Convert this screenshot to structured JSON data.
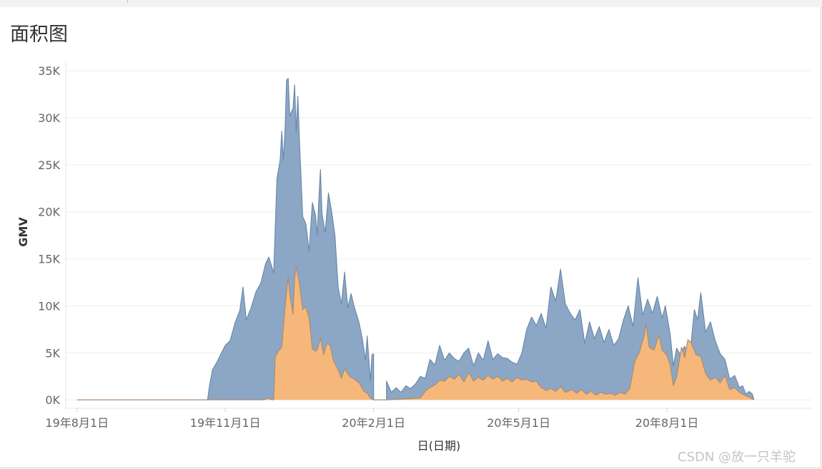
{
  "chart_data": {
    "type": "area",
    "title": "面积图",
    "xlabel": "日(日期)",
    "ylabel": "GMV",
    "x_range": [
      "2019-07-25",
      "2020-10-30"
    ],
    "ylim": [
      -900,
      36000
    ],
    "yticks": [
      0,
      5000,
      10000,
      15000,
      20000,
      25000,
      30000,
      35000
    ],
    "ytick_labels": [
      "0K",
      "5K",
      "10K",
      "15K",
      "20K",
      "25K",
      "30K",
      "35K"
    ],
    "xticks": [
      "2019-08-01",
      "2019-11-01",
      "2020-02-01",
      "2020-05-01",
      "2020-08-01"
    ],
    "xtick_labels": [
      "19年8月1日",
      "19年11月1日",
      "20年2月1日",
      "20年5月1日",
      "20年8月1日"
    ],
    "grid": "horizontal",
    "legend": "none",
    "series": [
      {
        "color": "#8ba7c5",
        "stroke": "#6886a8",
        "points": [
          [
            "2019-08-01",
            0
          ],
          [
            "2019-10-15",
            0
          ],
          [
            "2019-10-21",
            0
          ],
          [
            "2019-10-22",
            1300
          ],
          [
            "2019-10-24",
            3200
          ],
          [
            "2019-10-27",
            4100
          ],
          [
            "2019-11-01",
            5800
          ],
          [
            "2019-11-04",
            6300
          ],
          [
            "2019-11-07",
            8200
          ],
          [
            "2019-11-10",
            9500
          ],
          [
            "2019-11-12",
            12000
          ],
          [
            "2019-11-14",
            8500
          ],
          [
            "2019-11-17",
            9800
          ],
          [
            "2019-11-20",
            11500
          ],
          [
            "2019-11-23",
            12400
          ],
          [
            "2019-11-26",
            14500
          ],
          [
            "2019-11-28",
            15200
          ],
          [
            "2019-12-01",
            13500
          ],
          [
            "2019-12-03",
            23500
          ],
          [
            "2019-12-05",
            25500
          ],
          [
            "2019-12-06",
            28600
          ],
          [
            "2019-12-07",
            25500
          ],
          [
            "2019-12-08",
            28500
          ],
          [
            "2019-12-09",
            34000
          ],
          [
            "2019-12-10",
            34200
          ],
          [
            "2019-12-11",
            30200
          ],
          [
            "2019-12-13",
            31000
          ],
          [
            "2019-12-14",
            33500
          ],
          [
            "2019-12-15",
            28500
          ],
          [
            "2019-12-16",
            32300
          ],
          [
            "2019-12-17",
            27500
          ],
          [
            "2019-12-19",
            19500
          ],
          [
            "2019-12-21",
            18700
          ],
          [
            "2019-12-23",
            15800
          ],
          [
            "2019-12-25",
            21000
          ],
          [
            "2019-12-27",
            19600
          ],
          [
            "2019-12-28",
            17500
          ],
          [
            "2019-12-29",
            21300
          ],
          [
            "2019-12-30",
            24500
          ],
          [
            "2019-12-31",
            19800
          ],
          [
            "2020-01-02",
            17800
          ],
          [
            "2020-01-04",
            22000
          ],
          [
            "2020-01-06",
            20000
          ],
          [
            "2020-01-08",
            17500
          ],
          [
            "2020-01-10",
            12000
          ],
          [
            "2020-01-12",
            10200
          ],
          [
            "2020-01-14",
            13600
          ],
          [
            "2020-01-16",
            9800
          ],
          [
            "2020-01-18",
            11300
          ],
          [
            "2020-01-20",
            9900
          ],
          [
            "2020-01-23",
            8200
          ],
          [
            "2020-01-25",
            6500
          ],
          [
            "2020-01-27",
            4200
          ],
          [
            "2020-01-28",
            6800
          ],
          [
            "2020-01-30",
            2000
          ],
          [
            "2020-01-31",
            4800
          ],
          [
            "2020-02-01",
            4900
          ],
          [
            "2020-02-01",
            0
          ],
          [
            "2020-02-09",
            0
          ],
          [
            "2020-02-09",
            2000
          ],
          [
            "2020-02-12",
            800
          ],
          [
            "2020-02-15",
            1300
          ],
          [
            "2020-02-18",
            800
          ],
          [
            "2020-02-21",
            1500
          ],
          [
            "2020-02-24",
            1200
          ],
          [
            "2020-02-27",
            1700
          ],
          [
            "2020-03-01",
            2500
          ],
          [
            "2020-03-04",
            2300
          ],
          [
            "2020-03-07",
            4300
          ],
          [
            "2020-03-10",
            3700
          ],
          [
            "2020-03-13",
            5800
          ],
          [
            "2020-03-16",
            4200
          ],
          [
            "2020-03-19",
            5000
          ],
          [
            "2020-03-22",
            4400
          ],
          [
            "2020-03-25",
            4100
          ],
          [
            "2020-03-28",
            5000
          ],
          [
            "2020-03-31",
            5500
          ],
          [
            "2020-04-03",
            3600
          ],
          [
            "2020-04-06",
            5000
          ],
          [
            "2020-04-09",
            4200
          ],
          [
            "2020-04-12",
            6300
          ],
          [
            "2020-04-15",
            4300
          ],
          [
            "2020-04-18",
            4900
          ],
          [
            "2020-04-21",
            4500
          ],
          [
            "2020-04-24",
            4400
          ],
          [
            "2020-04-27",
            4000
          ],
          [
            "2020-04-30",
            3800
          ],
          [
            "2020-05-03",
            5000
          ],
          [
            "2020-05-06",
            7500
          ],
          [
            "2020-05-09",
            8800
          ],
          [
            "2020-05-12",
            7900
          ],
          [
            "2020-05-15",
            9200
          ],
          [
            "2020-05-18",
            7600
          ],
          [
            "2020-05-21",
            12000
          ],
          [
            "2020-05-24",
            10500
          ],
          [
            "2020-05-27",
            13900
          ],
          [
            "2020-05-30",
            10200
          ],
          [
            "2020-06-02",
            9200
          ],
          [
            "2020-06-05",
            8500
          ],
          [
            "2020-06-08",
            9600
          ],
          [
            "2020-06-11",
            6000
          ],
          [
            "2020-06-14",
            8300
          ],
          [
            "2020-06-17",
            6500
          ],
          [
            "2020-06-20",
            7800
          ],
          [
            "2020-06-23",
            6100
          ],
          [
            "2020-06-26",
            7500
          ],
          [
            "2020-06-29",
            5800
          ],
          [
            "2020-07-02",
            6500
          ],
          [
            "2020-07-05",
            8500
          ],
          [
            "2020-07-08",
            10000
          ],
          [
            "2020-07-11",
            7800
          ],
          [
            "2020-07-14",
            13000
          ],
          [
            "2020-07-17",
            9000
          ],
          [
            "2020-07-20",
            10700
          ],
          [
            "2020-07-23",
            9200
          ],
          [
            "2020-07-26",
            11000
          ],
          [
            "2020-07-29",
            8700
          ],
          [
            "2020-07-31",
            10000
          ],
          [
            "2020-08-03",
            7000
          ],
          [
            "2020-08-05",
            3600
          ],
          [
            "2020-08-07",
            5500
          ],
          [
            "2020-08-09",
            4900
          ],
          [
            "2020-08-12",
            5700
          ],
          [
            "2020-08-15",
            4300
          ],
          [
            "2020-08-18",
            9600
          ],
          [
            "2020-08-20",
            8500
          ],
          [
            "2020-08-22",
            11400
          ],
          [
            "2020-08-25",
            7200
          ],
          [
            "2020-08-28",
            8300
          ],
          [
            "2020-08-31",
            6300
          ],
          [
            "2020-09-03",
            4900
          ],
          [
            "2020-09-06",
            4300
          ],
          [
            "2020-09-09",
            2200
          ],
          [
            "2020-09-12",
            2600
          ],
          [
            "2020-09-15",
            1300
          ],
          [
            "2020-09-17",
            1500
          ],
          [
            "2020-09-19",
            600
          ],
          [
            "2020-09-21",
            900
          ],
          [
            "2020-09-23",
            600
          ],
          [
            "2020-09-24",
            0
          ]
        ]
      },
      {
        "color": "#f5b87a",
        "stroke": "#b08866",
        "points": [
          [
            "2019-08-01",
            0
          ],
          [
            "2019-11-25",
            0
          ],
          [
            "2019-11-27",
            200
          ],
          [
            "2019-11-30",
            0
          ],
          [
            "2019-12-01",
            0
          ],
          [
            "2019-12-02",
            4600
          ],
          [
            "2019-12-04",
            5200
          ],
          [
            "2019-12-06",
            5600
          ],
          [
            "2019-12-08",
            9800
          ],
          [
            "2019-12-10",
            13100
          ],
          [
            "2019-12-11",
            11200
          ],
          [
            "2019-12-12",
            10200
          ],
          [
            "2019-12-13",
            9100
          ],
          [
            "2019-12-14",
            12900
          ],
          [
            "2019-12-15",
            14100
          ],
          [
            "2019-12-17",
            12300
          ],
          [
            "2019-12-19",
            9600
          ],
          [
            "2019-12-21",
            9900
          ],
          [
            "2019-12-23",
            8700
          ],
          [
            "2019-12-25",
            5400
          ],
          [
            "2019-12-27",
            5200
          ],
          [
            "2019-12-28",
            5300
          ],
          [
            "2019-12-30",
            6600
          ],
          [
            "2020-01-01",
            4800
          ],
          [
            "2020-01-03",
            6000
          ],
          [
            "2020-01-05",
            5800
          ],
          [
            "2020-01-07",
            4200
          ],
          [
            "2020-01-10",
            3200
          ],
          [
            "2020-01-12",
            2300
          ],
          [
            "2020-01-14",
            3300
          ],
          [
            "2020-01-17",
            2500
          ],
          [
            "2020-01-20",
            2200
          ],
          [
            "2020-01-23",
            1800
          ],
          [
            "2020-01-26",
            900
          ],
          [
            "2020-01-28",
            700
          ],
          [
            "2020-01-30",
            200
          ],
          [
            "2020-02-01",
            0
          ],
          [
            "2020-02-10",
            0
          ],
          [
            "2020-02-20",
            100
          ],
          [
            "2020-03-01",
            200
          ],
          [
            "2020-03-04",
            900
          ],
          [
            "2020-03-07",
            1300
          ],
          [
            "2020-03-10",
            1600
          ],
          [
            "2020-03-13",
            2100
          ],
          [
            "2020-03-16",
            2000
          ],
          [
            "2020-03-19",
            2500
          ],
          [
            "2020-03-22",
            2200
          ],
          [
            "2020-03-25",
            2700
          ],
          [
            "2020-03-28",
            1900
          ],
          [
            "2020-03-31",
            2900
          ],
          [
            "2020-04-03",
            2000
          ],
          [
            "2020-04-06",
            2400
          ],
          [
            "2020-04-09",
            2100
          ],
          [
            "2020-04-12",
            2600
          ],
          [
            "2020-04-15",
            2200
          ],
          [
            "2020-04-18",
            2500
          ],
          [
            "2020-04-21",
            2000
          ],
          [
            "2020-04-24",
            2300
          ],
          [
            "2020-04-27",
            1900
          ],
          [
            "2020-04-30",
            2400
          ],
          [
            "2020-05-03",
            2100
          ],
          [
            "2020-05-06",
            2200
          ],
          [
            "2020-05-09",
            1900
          ],
          [
            "2020-05-12",
            2000
          ],
          [
            "2020-05-15",
            1300
          ],
          [
            "2020-05-18",
            1000
          ],
          [
            "2020-05-21",
            1200
          ],
          [
            "2020-05-24",
            900
          ],
          [
            "2020-05-27",
            1400
          ],
          [
            "2020-05-30",
            800
          ],
          [
            "2020-06-03",
            1100
          ],
          [
            "2020-06-06",
            700
          ],
          [
            "2020-06-09",
            1100
          ],
          [
            "2020-06-12",
            600
          ],
          [
            "2020-06-15",
            900
          ],
          [
            "2020-06-18",
            500
          ],
          [
            "2020-06-21",
            800
          ],
          [
            "2020-06-24",
            600
          ],
          [
            "2020-06-27",
            700
          ],
          [
            "2020-06-30",
            500
          ],
          [
            "2020-07-03",
            800
          ],
          [
            "2020-07-06",
            600
          ],
          [
            "2020-07-09",
            1200
          ],
          [
            "2020-07-12",
            4100
          ],
          [
            "2020-07-15",
            5100
          ],
          [
            "2020-07-18",
            6900
          ],
          [
            "2020-07-19",
            8100
          ],
          [
            "2020-07-21",
            5600
          ],
          [
            "2020-07-24",
            5300
          ],
          [
            "2020-07-27",
            6900
          ],
          [
            "2020-07-29",
            5300
          ],
          [
            "2020-08-01",
            4700
          ],
          [
            "2020-08-03",
            3700
          ],
          [
            "2020-08-05",
            1500
          ],
          [
            "2020-08-07",
            2400
          ],
          [
            "2020-08-10",
            5600
          ],
          [
            "2020-08-12",
            4500
          ],
          [
            "2020-08-14",
            6400
          ],
          [
            "2020-08-16",
            6100
          ],
          [
            "2020-08-19",
            4800
          ],
          [
            "2020-08-22",
            4600
          ],
          [
            "2020-08-25",
            2800
          ],
          [
            "2020-08-28",
            2100
          ],
          [
            "2020-08-31",
            2400
          ],
          [
            "2020-09-03",
            1800
          ],
          [
            "2020-09-06",
            2600
          ],
          [
            "2020-09-09",
            1100
          ],
          [
            "2020-09-12",
            1300
          ],
          [
            "2020-09-15",
            800
          ],
          [
            "2020-09-18",
            500
          ],
          [
            "2020-09-21",
            300
          ],
          [
            "2020-09-24",
            0
          ]
        ]
      }
    ]
  },
  "watermark": "CSDN @放一只羊驼"
}
